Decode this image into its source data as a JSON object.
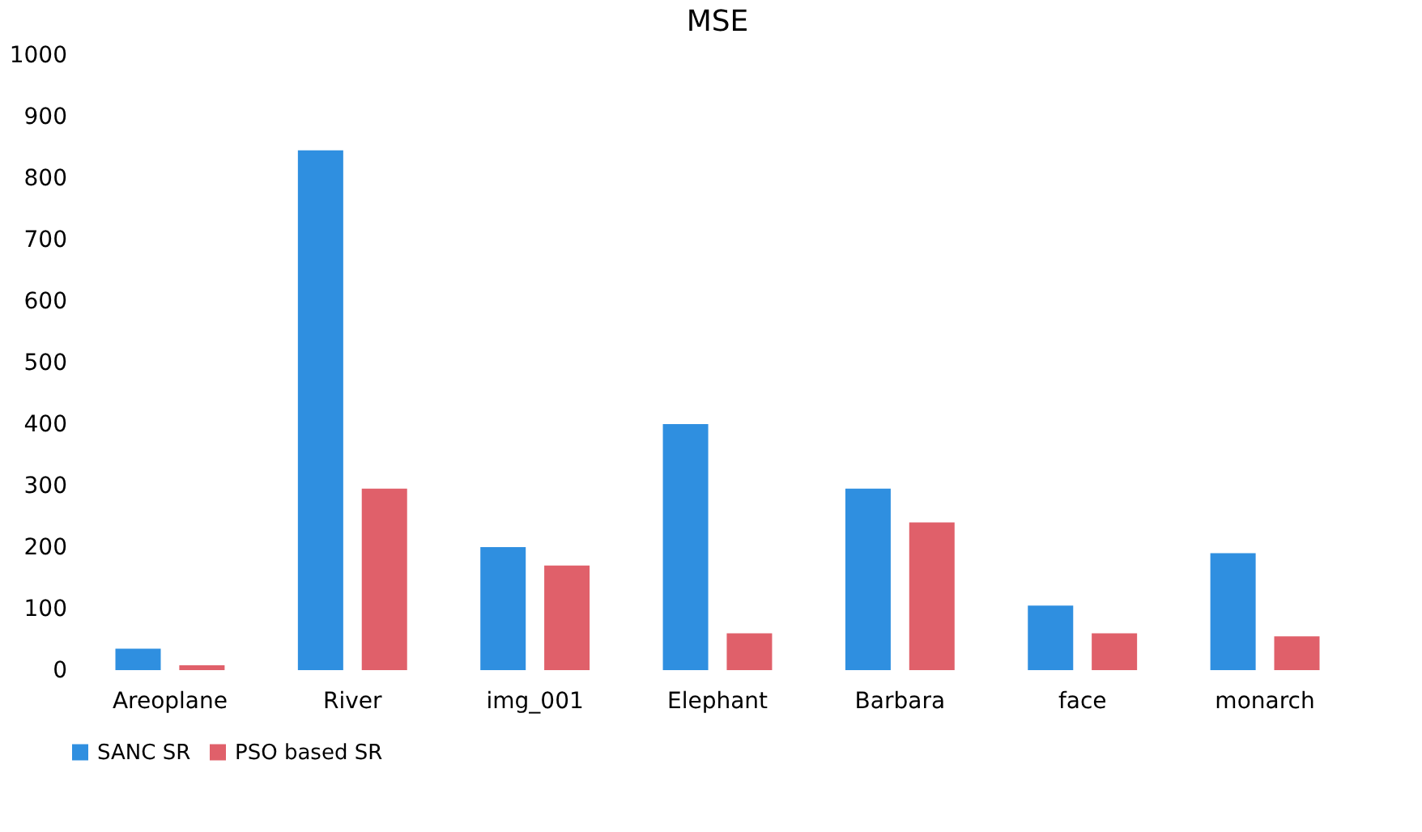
{
  "chart_data": {
    "type": "bar",
    "title": "MSE",
    "categories": [
      "Areoplane",
      "River",
      "img_001",
      "Elephant",
      "Barbara",
      "face",
      "monarch"
    ],
    "series": [
      {
        "name": "SANC SR",
        "color": "#2f8fe0",
        "values": [
          35,
          845,
          200,
          400,
          295,
          105,
          190
        ]
      },
      {
        "name": "PSO based SR",
        "color": "#e0606a",
        "values": [
          8,
          295,
          170,
          60,
          240,
          60,
          55
        ]
      }
    ],
    "ylim": [
      0,
      1000
    ],
    "yticks": [
      0,
      100,
      200,
      300,
      400,
      500,
      600,
      700,
      800,
      900,
      1000
    ],
    "grid": false,
    "legend": "bottom"
  }
}
